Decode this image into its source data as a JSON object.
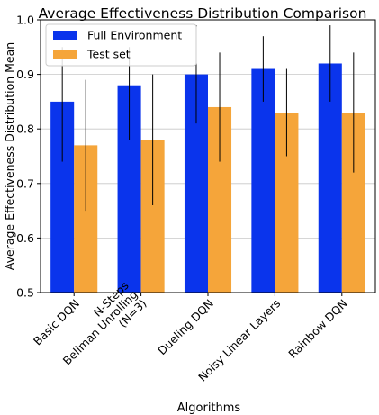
{
  "chart_data": {
    "type": "bar",
    "title": "Average Effectiveness Distribution Comparison",
    "xlabel": "Algorithms",
    "ylabel": "Average Effectiveness Distribution Mean",
    "ylim": [
      0.5,
      1.0
    ],
    "yticks": [
      "0.5",
      "0.6",
      "0.7",
      "0.8",
      "0.9",
      "1.0"
    ],
    "grid": true,
    "legend_position": "top-left",
    "categories": [
      [
        "Basic DQN"
      ],
      [
        "N-Steps",
        "Bellman Unrolling",
        "(N=3)"
      ],
      [
        "Dueling DQN"
      ],
      [
        "Noisy Linear Layers"
      ],
      [
        "Rainbow DQN"
      ]
    ],
    "series": [
      {
        "name": "Full Environment",
        "color": "#0a34ec",
        "values": [
          0.85,
          0.88,
          0.9,
          0.91,
          0.92
        ],
        "error_low": [
          0.74,
          0.78,
          0.81,
          0.85,
          0.85
        ],
        "error_high": [
          0.95,
          0.95,
          0.99,
          0.97,
          0.99
        ]
      },
      {
        "name": "Test set",
        "color": "#f5a53a",
        "values": [
          0.77,
          0.78,
          0.84,
          0.83,
          0.83
        ],
        "error_low": [
          0.65,
          0.66,
          0.74,
          0.75,
          0.72
        ],
        "error_high": [
          0.89,
          0.9,
          0.94,
          0.91,
          0.94
        ]
      }
    ]
  }
}
